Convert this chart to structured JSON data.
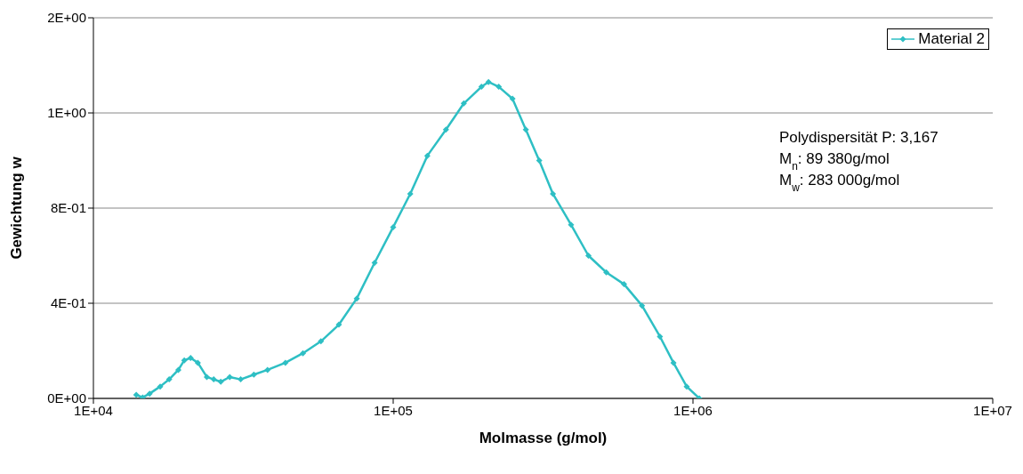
{
  "chart_data": {
    "type": "line",
    "xlabel": "Molmasse (g/mol)",
    "ylabel": "Gewichtung w",
    "log": "x",
    "xlim": [
      10000,
      10000000
    ],
    "xticks": [
      {
        "value": 10000,
        "label": "1E+04"
      },
      {
        "value": 100000,
        "label": "1E+05"
      },
      {
        "value": 1000000,
        "label": "1E+06"
      },
      {
        "value": 10000000,
        "label": "1E+07"
      }
    ],
    "ylim": [
      0,
      1.6
    ],
    "yticks": [
      {
        "value": 0,
        "label": "0E+00"
      },
      {
        "value": 0.4,
        "label": "4E-01"
      },
      {
        "value": 0.8,
        "label": "8E-01"
      },
      {
        "value": 1.2,
        "label": "1E+00"
      },
      {
        "value": 1.6,
        "label": "2E+00"
      }
    ],
    "grid": "y",
    "legend": "top right",
    "marker": "diamond",
    "line_style": "solid",
    "annotations": [
      "Polydispersität P: 3,167",
      "M$_{n}$:   89 380g/mol",
      "M$_{w}$:  283 000g/mol"
    ],
    "series": [
      {
        "name": "Material 2",
        "color": "#2ebfc4",
        "x": [
          13900,
          14600,
          15400,
          16700,
          17900,
          19200,
          20100,
          21100,
          22300,
          23900,
          25200,
          26600,
          28500,
          31000,
          34300,
          38100,
          43700,
          50000,
          57400,
          65900,
          75600,
          86700,
          100000,
          114000,
          130000,
          150000,
          172000,
          197000,
          208000,
          225000,
          250000,
          277000,
          307000,
          341000,
          392000,
          448000,
          514000,
          589000,
          676000,
          776000,
          861000,
          953000,
          1050000
        ],
        "values": [
          0.015,
          0.004,
          0.02,
          0.05,
          0.08,
          0.12,
          0.16,
          0.17,
          0.15,
          0.09,
          0.08,
          0.07,
          0.09,
          0.08,
          0.1,
          0.12,
          0.15,
          0.19,
          0.24,
          0.31,
          0.42,
          0.57,
          0.72,
          0.86,
          1.02,
          1.13,
          1.24,
          1.31,
          1.33,
          1.31,
          1.26,
          1.13,
          1.0,
          0.86,
          0.73,
          0.6,
          0.53,
          0.48,
          0.39,
          0.26,
          0.15,
          0.05,
          0
        ]
      }
    ]
  }
}
